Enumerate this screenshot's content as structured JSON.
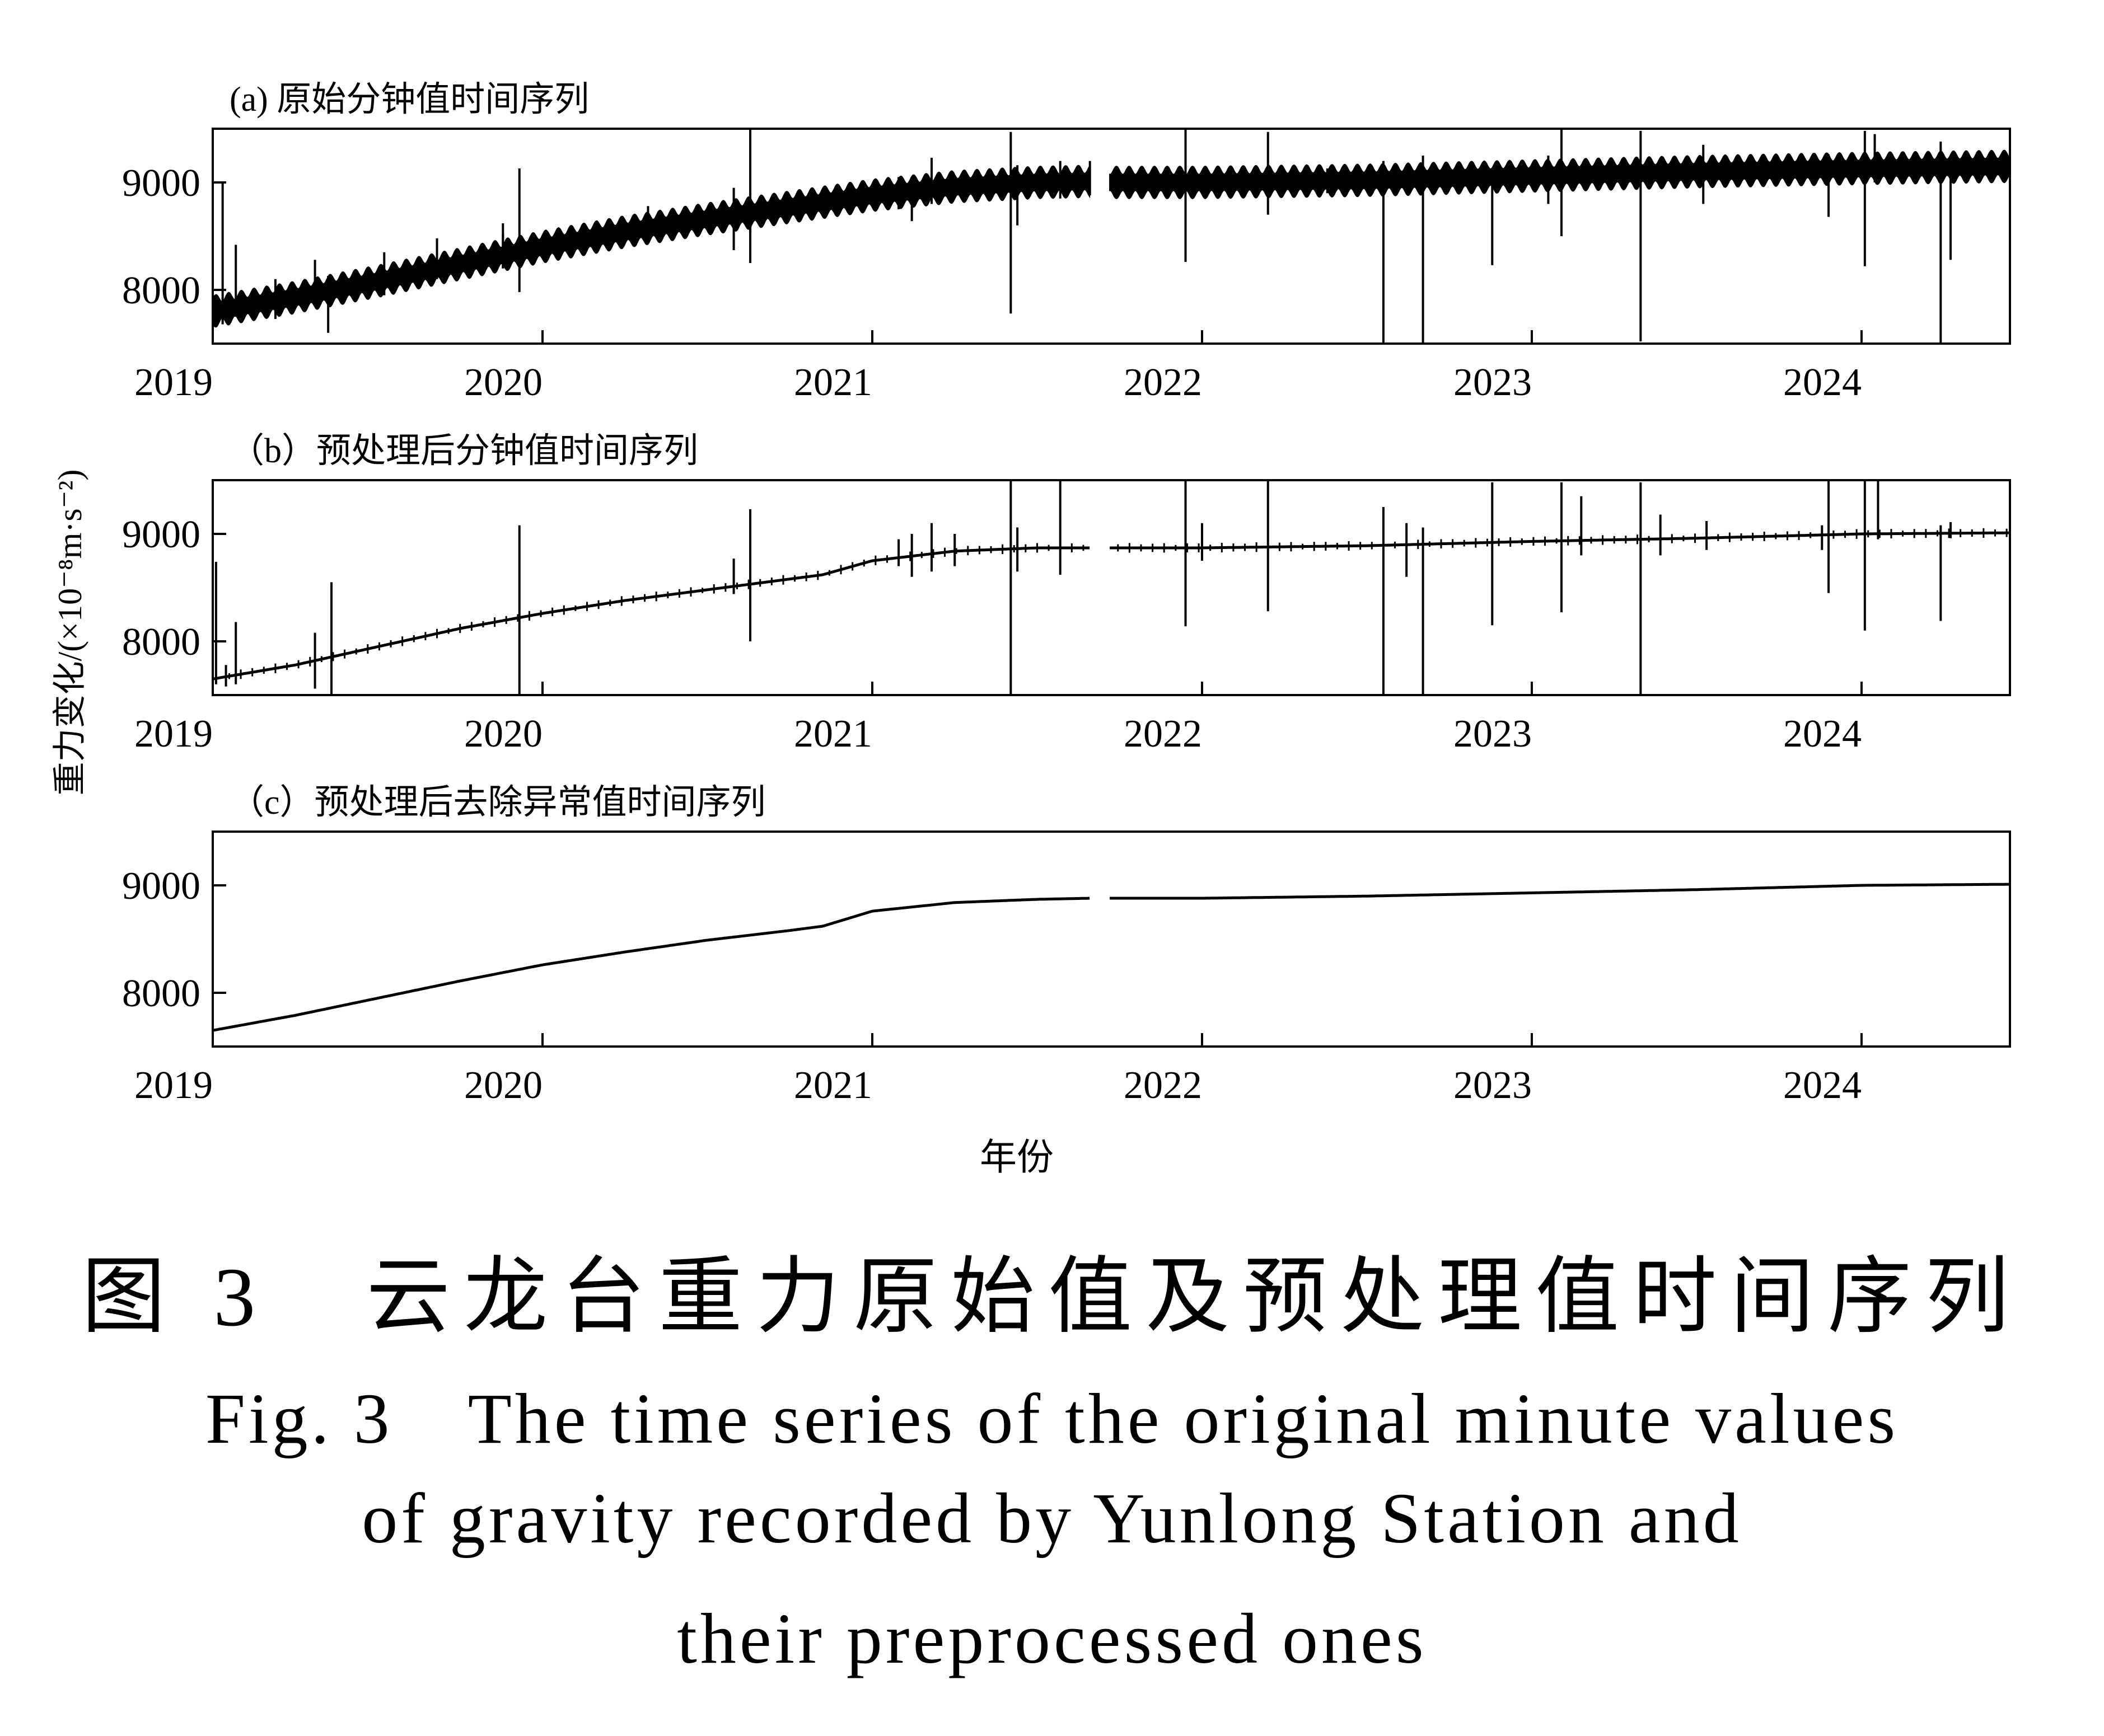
{
  "figure": {
    "ylabel": "重力变化/(×10⁻⁸m·s⁻²)",
    "xlabel": "年份",
    "caption_zh": "图 3　云龙台重力原始值及预处理值时间序列",
    "caption_en_lines": [
      "Fig. 3　The time series of the original minute values",
      "of gravity recorded by Yunlong Station and",
      "their preprocessed ones"
    ]
  },
  "chart_data": [
    {
      "type": "line",
      "title": "(a) 原始分钟值时间序列",
      "xlim": [
        2019,
        2024.45
      ],
      "ylim": [
        7500,
        9500
      ],
      "xticks": [
        2019,
        2020,
        2021,
        2022,
        2023,
        2024
      ],
      "yticks": [
        8000,
        9000
      ],
      "gap": [
        2021.66,
        2021.72
      ],
      "tidal_amplitude": 150,
      "series": [
        {
          "x": [
            2019.0,
            2019.25,
            2019.5,
            2019.75,
            2020.0,
            2020.25,
            2020.5,
            2020.75,
            2021.0,
            2021.25,
            2021.5,
            2021.66,
            2021.72,
            2022.0,
            2022.5,
            2023.0,
            2023.5,
            2024.0,
            2024.45
          ],
          "values": [
            7800,
            7930,
            8080,
            8240,
            8400,
            8540,
            8660,
            8770,
            8880,
            8960,
            9000,
            9010,
            9000,
            9000,
            9020,
            9060,
            9100,
            9130,
            9150
          ]
        }
      ],
      "spikes": [
        {
          "x": 2019.03,
          "lo": 7680,
          "hi": 9000
        },
        {
          "x": 2019.07,
          "lo": 7750,
          "hi": 8420
        },
        {
          "x": 2019.19,
          "lo": 7730,
          "hi": 8100
        },
        {
          "x": 2019.31,
          "lo": 7850,
          "hi": 8280
        },
        {
          "x": 2019.35,
          "lo": 7600,
          "hi": 8130
        },
        {
          "x": 2019.52,
          "lo": 7950,
          "hi": 8350
        },
        {
          "x": 2019.68,
          "lo": 8100,
          "hi": 8480
        },
        {
          "x": 2019.88,
          "lo": 8200,
          "hi": 8520
        },
        {
          "x": 2019.88,
          "lo": 8200,
          "hi": 8620
        },
        {
          "x": 2019.93,
          "lo": 7980,
          "hi": 9130
        },
        {
          "x": 2020.32,
          "lo": 8470,
          "hi": 8780
        },
        {
          "x": 2020.58,
          "lo": 8370,
          "hi": 8950
        },
        {
          "x": 2020.63,
          "lo": 8530,
          "hi": 8850
        },
        {
          "x": 2020.63,
          "lo": 8250,
          "hi": 8750
        },
        {
          "x": 2020.63,
          "lo": 8600,
          "hi": 9500
        },
        {
          "x": 2021.08,
          "lo": 8750,
          "hi": 9050
        },
        {
          "x": 2021.12,
          "lo": 8640,
          "hi": 9050
        },
        {
          "x": 2021.18,
          "lo": 8800,
          "hi": 9230
        },
        {
          "x": 2021.42,
          "lo": 7780,
          "hi": 9470
        },
        {
          "x": 2021.44,
          "lo": 8600,
          "hi": 9160
        },
        {
          "x": 2021.57,
          "lo": 8850,
          "hi": 9200
        },
        {
          "x": 2021.66,
          "lo": 8880,
          "hi": 9200
        },
        {
          "x": 2021.95,
          "lo": 8260,
          "hi": 9500
        },
        {
          "x": 2022.2,
          "lo": 8700,
          "hi": 9470
        },
        {
          "x": 2022.38,
          "lo": 8900,
          "hi": 9130
        },
        {
          "x": 2022.55,
          "lo": 7500,
          "hi": 9200
        },
        {
          "x": 2022.67,
          "lo": 7500,
          "hi": 9250
        },
        {
          "x": 2022.88,
          "lo": 8230,
          "hi": 9100
        },
        {
          "x": 2023.05,
          "lo": 8800,
          "hi": 9250
        },
        {
          "x": 2023.09,
          "lo": 8500,
          "hi": 9500
        },
        {
          "x": 2023.33,
          "lo": 7520,
          "hi": 9480
        },
        {
          "x": 2023.52,
          "lo": 8800,
          "hi": 9350
        },
        {
          "x": 2023.9,
          "lo": 8680,
          "hi": 9260
        },
        {
          "x": 2024.01,
          "lo": 8220,
          "hi": 9480
        },
        {
          "x": 2024.04,
          "lo": 9000,
          "hi": 9450
        },
        {
          "x": 2024.24,
          "lo": 7500,
          "hi": 9380
        },
        {
          "x": 2024.27,
          "lo": 8280,
          "hi": 9250
        }
      ]
    },
    {
      "type": "line",
      "title": "（b）预处理后分钟值时间序列",
      "xlim": [
        2019,
        2024.45
      ],
      "ylim": [
        7500,
        9500
      ],
      "xticks": [
        2019,
        2020,
        2021,
        2022,
        2023,
        2024
      ],
      "yticks": [
        8000,
        9000
      ],
      "gap": [
        2021.66,
        2021.72
      ],
      "tidal_amplitude": 0,
      "series": [
        {
          "x": [
            2019.0,
            2019.25,
            2019.5,
            2019.75,
            2020.0,
            2020.25,
            2020.5,
            2020.75,
            2020.85,
            2021.0,
            2021.25,
            2021.5,
            2021.66,
            2021.72,
            2022.0,
            2022.5,
            2023.0,
            2023.5,
            2024.0,
            2024.45
          ],
          "values": [
            7650,
            7780,
            7950,
            8120,
            8260,
            8380,
            8480,
            8580,
            8620,
            8750,
            8840,
            8870,
            8870,
            8870,
            8870,
            8890,
            8930,
            8960,
            9000,
            9010
          ]
        }
      ],
      "spikes": [
        {
          "x": 2019.01,
          "lo": 7600,
          "hi": 8740
        },
        {
          "x": 2019.04,
          "lo": 7580,
          "hi": 7780
        },
        {
          "x": 2019.07,
          "lo": 7600,
          "hi": 8180
        },
        {
          "x": 2019.31,
          "lo": 7560,
          "hi": 8080
        },
        {
          "x": 2019.36,
          "lo": 7500,
          "hi": 8550
        },
        {
          "x": 2019.93,
          "lo": 7500,
          "hi": 9080
        },
        {
          "x": 2020.58,
          "lo": 8440,
          "hi": 8770
        },
        {
          "x": 2020.63,
          "lo": 8000,
          "hi": 9230
        },
        {
          "x": 2021.08,
          "lo": 8700,
          "hi": 8950
        },
        {
          "x": 2021.12,
          "lo": 8600,
          "hi": 9000
        },
        {
          "x": 2021.18,
          "lo": 8650,
          "hi": 9100
        },
        {
          "x": 2021.25,
          "lo": 8700,
          "hi": 9000
        },
        {
          "x": 2021.42,
          "lo": 7500,
          "hi": 9490
        },
        {
          "x": 2021.44,
          "lo": 8650,
          "hi": 9060
        },
        {
          "x": 2021.57,
          "lo": 8620,
          "hi": 9500
        },
        {
          "x": 2021.95,
          "lo": 8140,
          "hi": 9500
        },
        {
          "x": 2022.0,
          "lo": 8750,
          "hi": 9100
        },
        {
          "x": 2022.2,
          "lo": 8280,
          "hi": 9490
        },
        {
          "x": 2022.55,
          "lo": 7500,
          "hi": 9250
        },
        {
          "x": 2022.62,
          "lo": 8600,
          "hi": 9100
        },
        {
          "x": 2022.67,
          "lo": 7500,
          "hi": 9060
        },
        {
          "x": 2022.88,
          "lo": 8150,
          "hi": 9480
        },
        {
          "x": 2023.09,
          "lo": 8270,
          "hi": 9480
        },
        {
          "x": 2023.15,
          "lo": 8800,
          "hi": 9350
        },
        {
          "x": 2023.33,
          "lo": 7500,
          "hi": 9480
        },
        {
          "x": 2023.39,
          "lo": 8800,
          "hi": 9180
        },
        {
          "x": 2023.53,
          "lo": 8850,
          "hi": 9120
        },
        {
          "x": 2023.88,
          "lo": 8850,
          "hi": 9080
        },
        {
          "x": 2023.9,
          "lo": 8450,
          "hi": 9500
        },
        {
          "x": 2024.01,
          "lo": 8100,
          "hi": 9490
        },
        {
          "x": 2024.05,
          "lo": 8950,
          "hi": 9490
        },
        {
          "x": 2024.24,
          "lo": 8190,
          "hi": 9080
        },
        {
          "x": 2024.27,
          "lo": 8960,
          "hi": 9110
        }
      ]
    },
    {
      "type": "line",
      "title": "（c）预处理后去除异常值时间序列",
      "xlim": [
        2019,
        2024.45
      ],
      "ylim": [
        7500,
        9500
      ],
      "xticks": [
        2019,
        2020,
        2021,
        2022,
        2023,
        2024
      ],
      "yticks": [
        8000,
        9000
      ],
      "gap": [
        2021.66,
        2021.72
      ],
      "tidal_amplitude": 0,
      "series": [
        {
          "x": [
            2019.0,
            2019.25,
            2019.5,
            2019.75,
            2020.0,
            2020.25,
            2020.5,
            2020.75,
            2020.85,
            2021.0,
            2021.25,
            2021.5,
            2021.66,
            2021.72,
            2022.0,
            2022.5,
            2023.0,
            2023.5,
            2024.0,
            2024.45
          ],
          "values": [
            7650,
            7790,
            7950,
            8110,
            8260,
            8380,
            8490,
            8580,
            8620,
            8760,
            8840,
            8870,
            8880,
            8880,
            8880,
            8900,
            8930,
            8960,
            9000,
            9010
          ]
        }
      ],
      "spikes": []
    }
  ]
}
